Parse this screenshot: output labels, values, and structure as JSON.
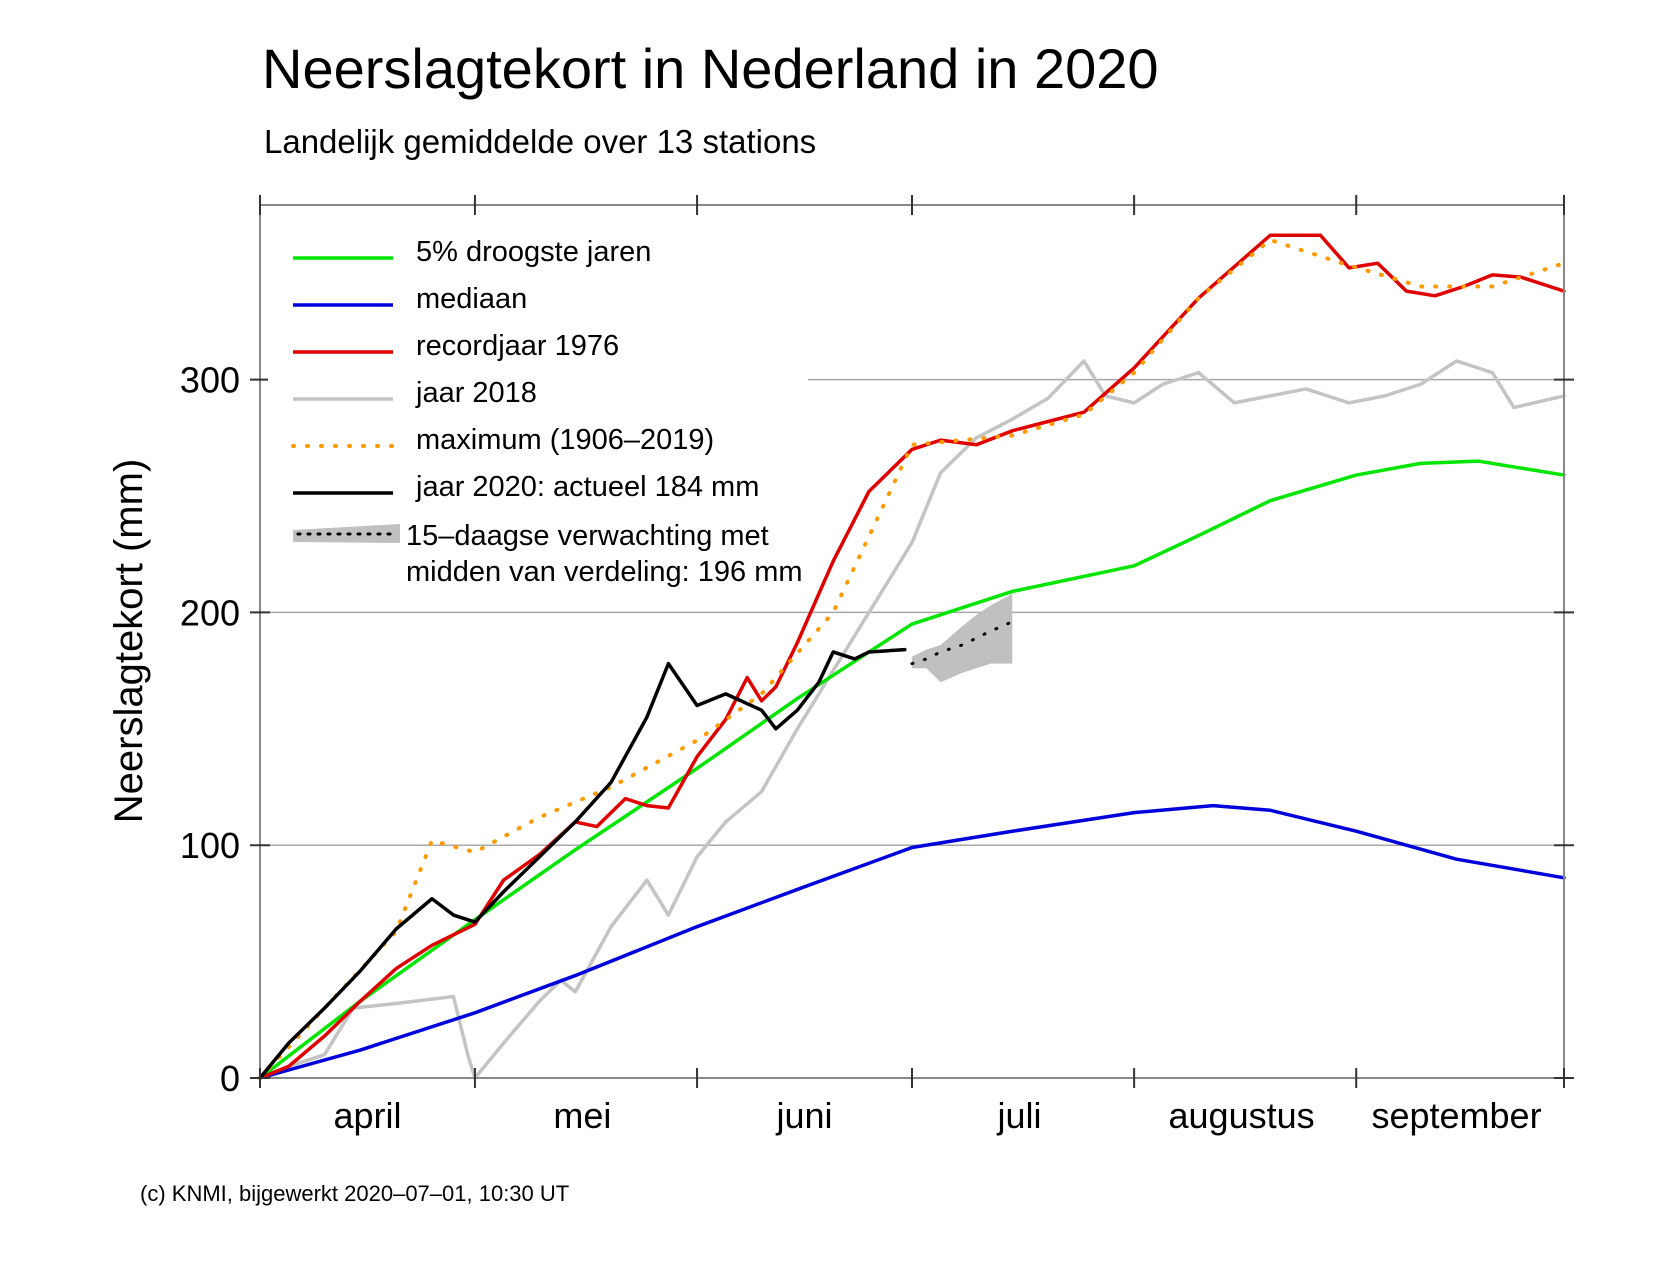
{
  "chart_data": {
    "type": "line",
    "title": "Neerslagtekort in Nederland in 2020",
    "subtitle": "Landelijk gemiddelde over 13 stations",
    "ylabel": "Neerslagtekort (mm)",
    "xlabel": "",
    "xlim": [
      "2020-04-01",
      "2020-09-30"
    ],
    "ylim": [
      0,
      375
    ],
    "y_ticks": [
      0,
      100,
      200,
      300
    ],
    "x_ticks": [
      "2020-04-01",
      "2020-05-01",
      "2020-06-01",
      "2020-07-01",
      "2020-08-01",
      "2020-09-01",
      "2020-09-30"
    ],
    "x_labels": [
      {
        "label": "april",
        "at": "2020-04-16"
      },
      {
        "label": "mei",
        "at": "2020-05-16"
      },
      {
        "label": "juni",
        "at": "2020-06-16"
      },
      {
        "label": "juli",
        "at": "2020-07-16"
      },
      {
        "label": "augustus",
        "at": "2020-08-16"
      },
      {
        "label": "september",
        "at": "2020-09-15"
      }
    ],
    "grid": true,
    "legend_position": "top-left",
    "series": [
      {
        "name": "5% droogste jaren",
        "color": "#00e600",
        "style": "solid",
        "x": [
          "2020-04-01",
          "2020-04-15",
          "2020-05-01",
          "2020-05-15",
          "2020-06-01",
          "2020-06-15",
          "2020-07-01",
          "2020-07-15",
          "2020-08-01",
          "2020-08-10",
          "2020-08-20",
          "2020-09-01",
          "2020-09-10",
          "2020-09-18",
          "2020-09-30"
        ],
        "y": [
          0,
          33,
          68,
          98,
          133,
          163,
          195,
          209,
          220,
          233,
          248,
          259,
          264,
          265,
          259
        ]
      },
      {
        "name": "mediaan",
        "color": "#0000dd",
        "style": "solid",
        "x": [
          "2020-04-01",
          "2020-04-15",
          "2020-05-01",
          "2020-05-15",
          "2020-06-01",
          "2020-06-15",
          "2020-07-01",
          "2020-07-15",
          "2020-08-01",
          "2020-08-12",
          "2020-08-20",
          "2020-09-01",
          "2020-09-15",
          "2020-09-30"
        ],
        "y": [
          0,
          12,
          28,
          44,
          65,
          81,
          99,
          106,
          114,
          117,
          115,
          106,
          94,
          86
        ]
      },
      {
        "name": "recordjaar 1976",
        "color": "#e00000",
        "style": "solid",
        "x": [
          "2020-04-01",
          "2020-04-05",
          "2020-04-10",
          "2020-04-15",
          "2020-04-20",
          "2020-04-25",
          "2020-04-29",
          "2020-05-01",
          "2020-05-05",
          "2020-05-10",
          "2020-05-15",
          "2020-05-18",
          "2020-05-22",
          "2020-05-25",
          "2020-05-28",
          "2020-06-01",
          "2020-06-05",
          "2020-06-08",
          "2020-06-10",
          "2020-06-12",
          "2020-06-15",
          "2020-06-20",
          "2020-06-25",
          "2020-07-01",
          "2020-07-05",
          "2020-07-10",
          "2020-07-15",
          "2020-07-20",
          "2020-07-25",
          "2020-08-01",
          "2020-08-10",
          "2020-08-20",
          "2020-08-27",
          "2020-08-31",
          "2020-09-04",
          "2020-09-08",
          "2020-09-12",
          "2020-09-16",
          "2020-09-20",
          "2020-09-24",
          "2020-09-30"
        ],
        "y": [
          0,
          5,
          18,
          33,
          47,
          57,
          63,
          66,
          85,
          96,
          110,
          108,
          120,
          117,
          116,
          138,
          154,
          172,
          162,
          168,
          187,
          222,
          252,
          270,
          274,
          272,
          278,
          282,
          286,
          305,
          335,
          362,
          362,
          348,
          350,
          338,
          336,
          340,
          345,
          344,
          338
        ]
      },
      {
        "name": "jaar 2018",
        "color": "#c4c4c4",
        "style": "solid",
        "x": [
          "2020-04-01",
          "2020-04-05",
          "2020-04-10",
          "2020-04-14",
          "2020-04-20",
          "2020-04-28",
          "2020-04-30",
          "2020-05-01",
          "2020-05-05",
          "2020-05-10",
          "2020-05-13",
          "2020-05-15",
          "2020-05-20",
          "2020-05-25",
          "2020-05-28",
          "2020-06-01",
          "2020-06-05",
          "2020-06-10",
          "2020-06-15",
          "2020-06-20",
          "2020-06-25",
          "2020-07-01",
          "2020-07-05",
          "2020-07-10",
          "2020-07-15",
          "2020-07-20",
          "2020-07-25",
          "2020-07-28",
          "2020-08-01",
          "2020-08-05",
          "2020-08-10",
          "2020-08-15",
          "2020-08-20",
          "2020-08-25",
          "2020-08-31",
          "2020-09-05",
          "2020-09-10",
          "2020-09-15",
          "2020-09-20",
          "2020-09-23",
          "2020-09-30"
        ],
        "y": [
          0,
          5,
          10,
          30,
          32,
          35,
          10,
          0,
          15,
          33,
          42,
          37,
          65,
          85,
          70,
          95,
          110,
          123,
          150,
          175,
          200,
          230,
          260,
          275,
          283,
          292,
          308,
          293,
          290,
          298,
          303,
          290,
          293,
          296,
          290,
          293,
          298,
          308,
          303,
          288,
          293
        ]
      },
      {
        "name": "maximum (1906–2019)",
        "color": "#ff9900",
        "style": "dotted",
        "x": [
          "2020-04-01",
          "2020-04-10",
          "2020-04-20",
          "2020-04-25",
          "2020-05-01",
          "2020-05-10",
          "2020-05-20",
          "2020-06-01",
          "2020-06-10",
          "2020-06-20",
          "2020-07-01",
          "2020-07-15",
          "2020-07-25",
          "2020-08-01",
          "2020-08-10",
          "2020-08-20",
          "2020-08-30",
          "2020-09-10",
          "2020-09-20",
          "2020-09-30"
        ],
        "y": [
          0,
          30,
          63,
          102,
          97,
          112,
          125,
          145,
          165,
          200,
          272,
          276,
          285,
          303,
          335,
          360,
          350,
          340,
          340,
          350
        ]
      },
      {
        "name": "jaar 2020: actueel 184 mm",
        "color": "#000000",
        "style": "solid",
        "x": [
          "2020-04-01",
          "2020-04-05",
          "2020-04-10",
          "2020-04-15",
          "2020-04-20",
          "2020-04-25",
          "2020-04-28",
          "2020-05-01",
          "2020-05-05",
          "2020-05-10",
          "2020-05-15",
          "2020-05-20",
          "2020-05-25",
          "2020-05-28",
          "2020-06-01",
          "2020-06-05",
          "2020-06-10",
          "2020-06-12",
          "2020-06-15",
          "2020-06-18",
          "2020-06-20",
          "2020-06-23",
          "2020-06-25",
          "2020-06-30"
        ],
        "y": [
          0,
          15,
          30,
          46,
          64,
          77,
          70,
          67,
          80,
          95,
          110,
          127,
          155,
          178,
          160,
          165,
          158,
          150,
          158,
          170,
          183,
          180,
          183,
          184
        ]
      }
    ],
    "forecast": {
      "name": "15–daagse verwachting met\nmidden van verdeling: 196 mm",
      "color": "#c0c0c0",
      "midline_color": "#000000",
      "x": [
        "2020-07-01",
        "2020-07-03",
        "2020-07-05",
        "2020-07-08",
        "2020-07-10",
        "2020-07-12",
        "2020-07-15"
      ],
      "mid": [
        178,
        180,
        183,
        186,
        189,
        192,
        196
      ],
      "lower": [
        176,
        176,
        170,
        174,
        176,
        178,
        178
      ],
      "upper": [
        181,
        184,
        186,
        194,
        199,
        203,
        208
      ]
    }
  },
  "legend": {
    "label_lines": [
      "15–daagse verwachting met",
      "midden van verdeling: 196 mm"
    ]
  },
  "footer": {
    "credit": "(c) KNMI, bijgewerkt 2020–07–01, 10:30 UT"
  }
}
